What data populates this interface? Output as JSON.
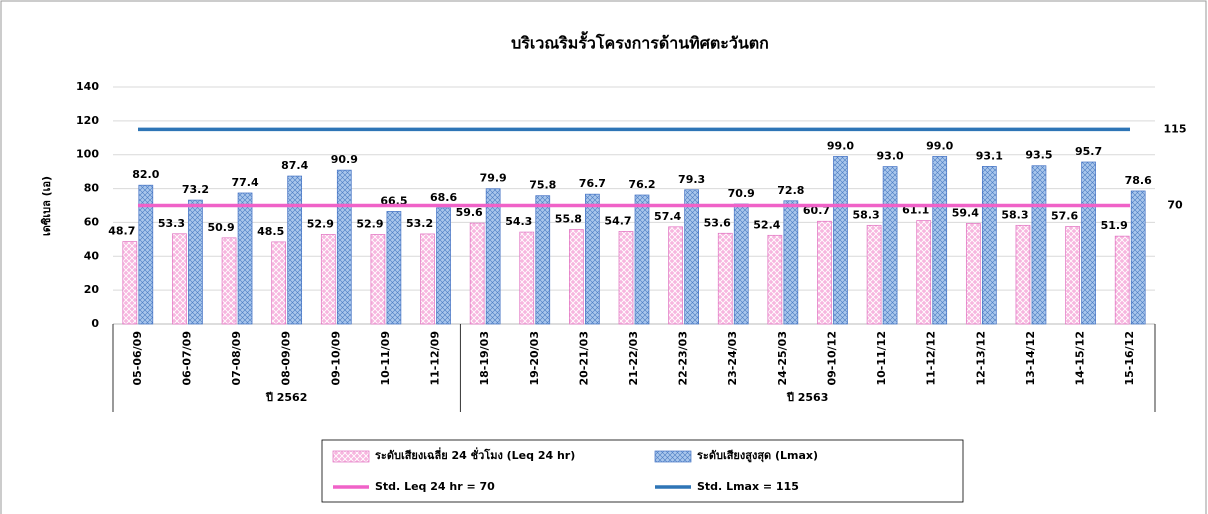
{
  "chart_data": {
    "type": "bar",
    "title": "บริเวณริมรั้วโครงการด้านทิศตะวันตก",
    "y_label": "เดซิเบล (เอ)",
    "categories": [
      "05-06/09",
      "06-07/09",
      "07-08/09",
      "08-09/09",
      "09-10/09",
      "10-11/09",
      "11-12/09",
      "18-19/03",
      "19-20/03",
      "20-21/03",
      "21-22/03",
      "22-23/03",
      "23-24/03",
      "24-25/03",
      "09-10/12",
      "10-11/12",
      "11-12/12",
      "12-13/12",
      "13-14/12",
      "14-15/12",
      "15-16/12"
    ],
    "groups": [
      {
        "label": "ปี 2562",
        "span": 7
      },
      {
        "label": "ปี 2563",
        "span": 14
      }
    ],
    "series": [
      {
        "name": "ระดับเสียงเฉลี่ย 24 ชั่วโมง (Leq 24 hr)",
        "color": "#f7b6df",
        "values": [
          48.7,
          53.3,
          50.9,
          48.5,
          52.9,
          52.9,
          53.2,
          59.6,
          54.3,
          55.8,
          54.7,
          57.4,
          53.6,
          52.4,
          60.7,
          58.3,
          61.1,
          59.4,
          58.3,
          57.6,
          51.9
        ],
        "value_labels": [
          "48.7",
          "53.3",
          "50.9",
          "48.5",
          "52.9",
          "52.9",
          "53.2",
          "59.6",
          "54.3",
          "55.8",
          "54.7",
          "57.4",
          "53.6",
          "52.4",
          "60.7",
          "58.3",
          "61.1",
          "59.4",
          "58.3",
          "57.6",
          "51.9"
        ]
      },
      {
        "name": "ระดับเสียงสูงสุด (Lmax)",
        "color": "#a9c6ec",
        "values": [
          82,
          73.2,
          77.4,
          87.4,
          90.9,
          66.5,
          68.6,
          79.9,
          75.8,
          76.7,
          76.2,
          79.3,
          70.9,
          72.8,
          99,
          93,
          99,
          93.1,
          93.5,
          95.7,
          78.6
        ],
        "value_labels": [
          "82.0",
          "73.2",
          "77.4",
          "87.4",
          "90.9",
          "66.5",
          "68.6",
          "79.9",
          "75.8",
          "76.7",
          "76.2",
          "79.3",
          "70.9",
          "72.8",
          "99.0",
          "93.0",
          "99.0",
          "93.1",
          "93.5",
          "95.7",
          "78.6"
        ]
      }
    ],
    "std_lines": [
      {
        "name": "Std. Leq 24 hr = 70",
        "value": 70,
        "color": "#f062c8"
      },
      {
        "name": "Std. Lmax = 115",
        "value": 115,
        "color": "#2e75b6"
      }
    ],
    "ylim": [
      0,
      140
    ],
    "yticks": [
      0,
      20,
      40,
      60,
      80,
      100,
      120,
      140
    ],
    "grid": true
  }
}
